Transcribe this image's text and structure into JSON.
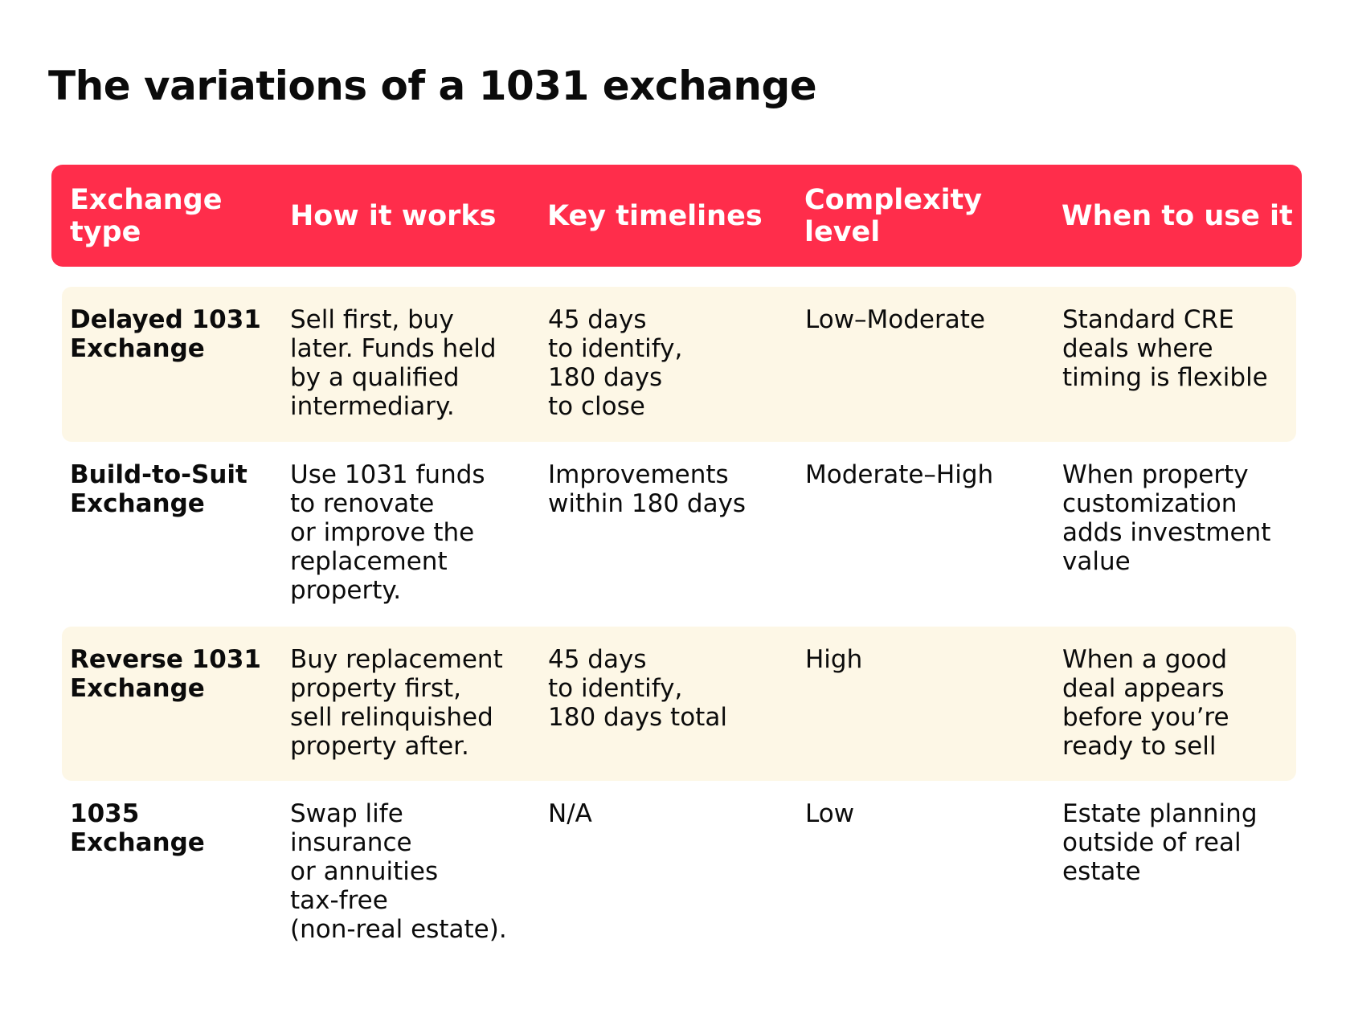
{
  "title": "The variations of a 1031 exchange",
  "colors": {
    "header_bg": "#ff2d4b",
    "header_text": "#ffffff",
    "shaded_row_bg": "#fdf7e6",
    "body_text": "#0b0b0b"
  },
  "table": {
    "headers": [
      "Exchange\ntype",
      "How it works",
      "Key timelines",
      "Complexity\nlevel",
      "When to use it"
    ],
    "rows": [
      {
        "type": "Delayed 1031\nExchange",
        "how": "Sell first, buy\nlater. Funds held\nby a qualified\nintermediary.",
        "timelines": "45 days\nto identify,\n180 days\nto close",
        "complexity": "Low–Moderate",
        "when": "Standard CRE\ndeals where\ntiming is flexible"
      },
      {
        "type": "Build-to-Suit\nExchange",
        "how": "Use 1031 funds\nto renovate\nor improve the\nreplacement\nproperty.",
        "timelines": "Improvements\nwithin 180 days",
        "complexity": "Moderate–High",
        "when": "When property\ncustomization\nadds investment\nvalue"
      },
      {
        "type": "Reverse 1031\nExchange",
        "how": "Buy replacement\nproperty first,\nsell relinquished\nproperty after.",
        "timelines": "45 days\nto identify,\n180 days total",
        "complexity": "High",
        "when": "When a good\ndeal appears\nbefore you’re\nready to sell"
      },
      {
        "type": "1035\nExchange",
        "how": "Swap life\ninsurance\nor annuities\ntax-free\n(non-real estate).",
        "timelines": "N/A",
        "complexity": "Low",
        "when": "Estate planning\noutside of real\nestate"
      }
    ]
  }
}
